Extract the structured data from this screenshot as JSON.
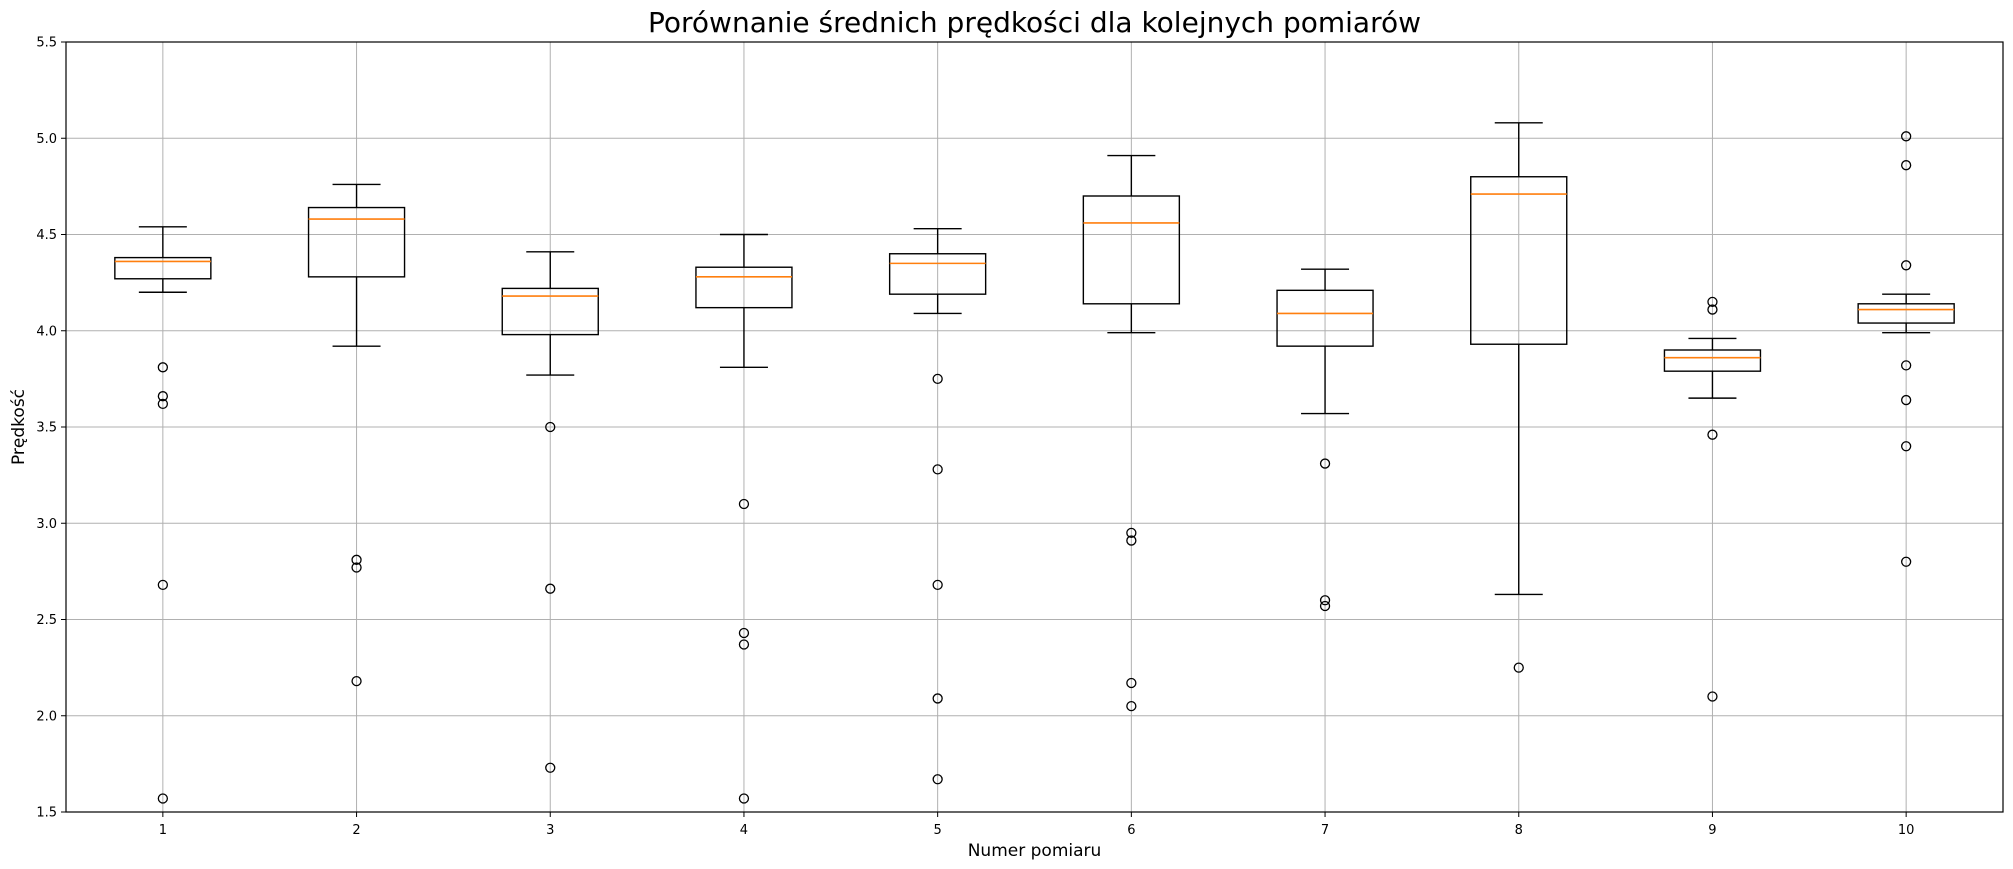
{
  "chart_data": {
    "type": "boxplot",
    "title": "Porównanie średnich prędkości dla kolejnych pomiarów",
    "xlabel": "Numer pomiaru",
    "ylabel": "Prędkość",
    "ylim": [
      1.5,
      5.5
    ],
    "yticks": [
      "1.5",
      "2.0",
      "2.5",
      "3.0",
      "3.5",
      "4.0",
      "4.5",
      "5.0",
      "5.5"
    ],
    "grid": true,
    "categories": [
      "1",
      "2",
      "3",
      "4",
      "5",
      "6",
      "7",
      "8",
      "9",
      "10"
    ],
    "boxes": [
      {
        "label": "1",
        "whislo": 4.2,
        "q1": 4.27,
        "med": 4.36,
        "q3": 4.38,
        "whishi": 4.54,
        "fliers": [
          3.81,
          3.66,
          3.62,
          2.68,
          1.57
        ]
      },
      {
        "label": "2",
        "whislo": 3.92,
        "q1": 4.28,
        "med": 4.58,
        "q3": 4.64,
        "whishi": 4.76,
        "fliers": [
          2.81,
          2.77,
          2.18
        ]
      },
      {
        "label": "3",
        "whislo": 3.77,
        "q1": 3.98,
        "med": 4.18,
        "q3": 4.22,
        "whishi": 4.41,
        "fliers": [
          3.5,
          2.66,
          1.73
        ]
      },
      {
        "label": "4",
        "whislo": 3.81,
        "q1": 4.12,
        "med": 4.28,
        "q3": 4.33,
        "whishi": 4.5,
        "fliers": [
          3.1,
          2.43,
          2.37,
          1.57
        ]
      },
      {
        "label": "5",
        "whislo": 4.09,
        "q1": 4.19,
        "med": 4.35,
        "q3": 4.4,
        "whishi": 4.53,
        "fliers": [
          3.75,
          3.28,
          2.68,
          2.09,
          1.67
        ]
      },
      {
        "label": "6",
        "whislo": 3.99,
        "q1": 4.14,
        "med": 4.56,
        "q3": 4.7,
        "whishi": 4.91,
        "fliers": [
          2.95,
          2.91,
          2.17,
          2.05
        ]
      },
      {
        "label": "7",
        "whislo": 3.57,
        "q1": 3.92,
        "med": 4.09,
        "q3": 4.21,
        "whishi": 4.32,
        "fliers": [
          3.31,
          2.6,
          2.57
        ]
      },
      {
        "label": "8",
        "whislo": 2.63,
        "q1": 3.93,
        "med": 4.71,
        "q3": 4.8,
        "whishi": 5.08,
        "fliers": [
          2.25
        ]
      },
      {
        "label": "9",
        "whislo": 3.65,
        "q1": 3.79,
        "med": 3.86,
        "q3": 3.9,
        "whishi": 3.96,
        "fliers": [
          4.15,
          4.11,
          3.46,
          2.1
        ]
      },
      {
        "label": "10",
        "whislo": 3.99,
        "q1": 4.04,
        "med": 4.11,
        "q3": 4.14,
        "whishi": 4.19,
        "fliers": [
          5.01,
          4.86,
          4.34,
          3.82,
          3.64,
          3.4,
          2.8
        ]
      }
    ]
  }
}
